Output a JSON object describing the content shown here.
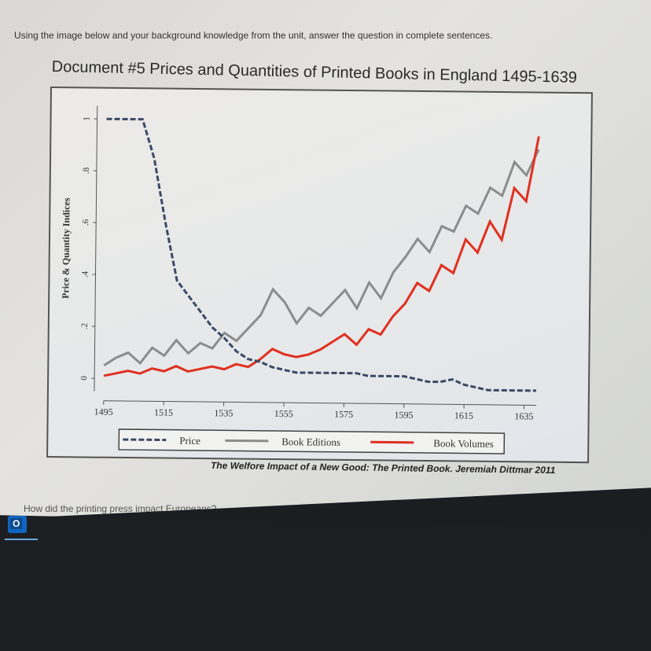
{
  "instruction": "Using the image below and your background knowledge from the unit, answer the question in complete sentences.",
  "document_title": "Document #5   Prices and Quantities of Printed Books in England 1495-1639",
  "source": "The Welfore Impact of a New Good: The Printed Book.  Jeremiah Dittmar 2011",
  "question": "How did the printing press impact Europeans?",
  "taskbar": {
    "outlook_icon_letter": "O"
  },
  "colors": {
    "price": "#3b4a66",
    "editions": "#8c8c8c",
    "volumes": "#e03020"
  },
  "chart_data": {
    "type": "line",
    "title": "Prices and Quantities of Printed Books in England 1495-1639",
    "xlabel": "",
    "ylabel": "Price & Quantity Indices",
    "xlim": [
      1495,
      1639
    ],
    "ylim": [
      -0.05,
      1.05
    ],
    "xticks": [
      "1495",
      "1515",
      "1535",
      "1555",
      "1575",
      "1595",
      "1615",
      "1635"
    ],
    "yticks": [
      "0",
      ".2",
      ".4",
      ".6",
      ".8",
      "1"
    ],
    "legend": "bottom",
    "x": [
      1495,
      1499,
      1503,
      1507,
      1511,
      1515,
      1519,
      1523,
      1527,
      1531,
      1535,
      1539,
      1543,
      1547,
      1551,
      1555,
      1559,
      1563,
      1567,
      1571,
      1575,
      1579,
      1583,
      1587,
      1591,
      1595,
      1599,
      1603,
      1607,
      1611,
      1615,
      1619,
      1623,
      1627,
      1631,
      1635,
      1639
    ],
    "series": [
      {
        "name": "Price",
        "style": "dashed",
        "values": [
          1,
          1,
          1,
          1,
          0.85,
          0.6,
          0.38,
          0.32,
          0.26,
          0.2,
          0.16,
          0.11,
          0.08,
          0.07,
          0.05,
          0.04,
          0.03,
          0.03,
          0.03,
          0.03,
          0.03,
          0.03,
          0.02,
          0.02,
          0.02,
          0.02,
          0.01,
          0,
          0,
          0.01,
          -0.01,
          -0.02,
          -0.03,
          -0.03,
          -0.03,
          -0.03,
          -0.03
        ]
      },
      {
        "name": "Book Editions",
        "style": "solid",
        "values": [
          0.05,
          0.08,
          0.1,
          0.06,
          0.12,
          0.09,
          0.15,
          0.1,
          0.14,
          0.12,
          0.18,
          0.15,
          0.2,
          0.25,
          0.35,
          0.3,
          0.22,
          0.28,
          0.25,
          0.3,
          0.35,
          0.28,
          0.38,
          0.32,
          0.42,
          0.48,
          0.55,
          0.5,
          0.6,
          0.58,
          0.68,
          0.65,
          0.75,
          0.72,
          0.85,
          0.8,
          0.9
        ]
      },
      {
        "name": "Book Volumes",
        "style": "solid",
        "values": [
          0.01,
          0.02,
          0.03,
          0.02,
          0.04,
          0.03,
          0.05,
          0.03,
          0.04,
          0.05,
          0.04,
          0.06,
          0.05,
          0.08,
          0.12,
          0.1,
          0.09,
          0.1,
          0.12,
          0.15,
          0.18,
          0.14,
          0.2,
          0.18,
          0.25,
          0.3,
          0.38,
          0.35,
          0.45,
          0.42,
          0.55,
          0.5,
          0.62,
          0.55,
          0.75,
          0.7,
          0.95
        ]
      }
    ]
  }
}
